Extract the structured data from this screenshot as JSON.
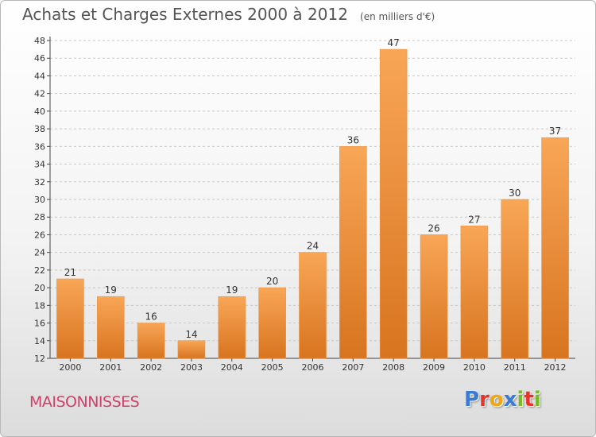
{
  "header": {
    "title": "Achats et Charges Externes 2000 à 2012",
    "unit": "(en milliers d'€)"
  },
  "footer": {
    "commune": "MAISONNISSES",
    "brand": "Proxiti",
    "brand_colors": [
      "#3b7bd6",
      "#e8332a",
      "#f2a414",
      "#3b7bd6",
      "#7ab829",
      "#e8332a",
      "#7ab829"
    ]
  },
  "colors": {
    "bar_light": "#f8a657",
    "bar_dark": "#d8741f",
    "commune_text": "#d04068"
  },
  "chart_data": {
    "type": "bar",
    "categories": [
      "2000",
      "2001",
      "2002",
      "2003",
      "2004",
      "2005",
      "2006",
      "2007",
      "2008",
      "2009",
      "2010",
      "2011",
      "2012"
    ],
    "values": [
      21,
      19,
      16,
      14,
      19,
      20,
      24,
      36,
      47,
      26,
      27,
      30,
      37
    ],
    "ylim": [
      12,
      48
    ],
    "yticks": [
      "12",
      "14",
      "16",
      "18",
      "20",
      "22",
      "24",
      "26",
      "28",
      "30",
      "32",
      "34",
      "36",
      "38",
      "40",
      "42",
      "44",
      "46",
      "48"
    ],
    "data_labels": [
      "21",
      "19",
      "16",
      "14",
      "19",
      "20",
      "24",
      "36",
      "47",
      "26",
      "27",
      "30",
      "37"
    ],
    "grid": "horizontal-dashed"
  }
}
